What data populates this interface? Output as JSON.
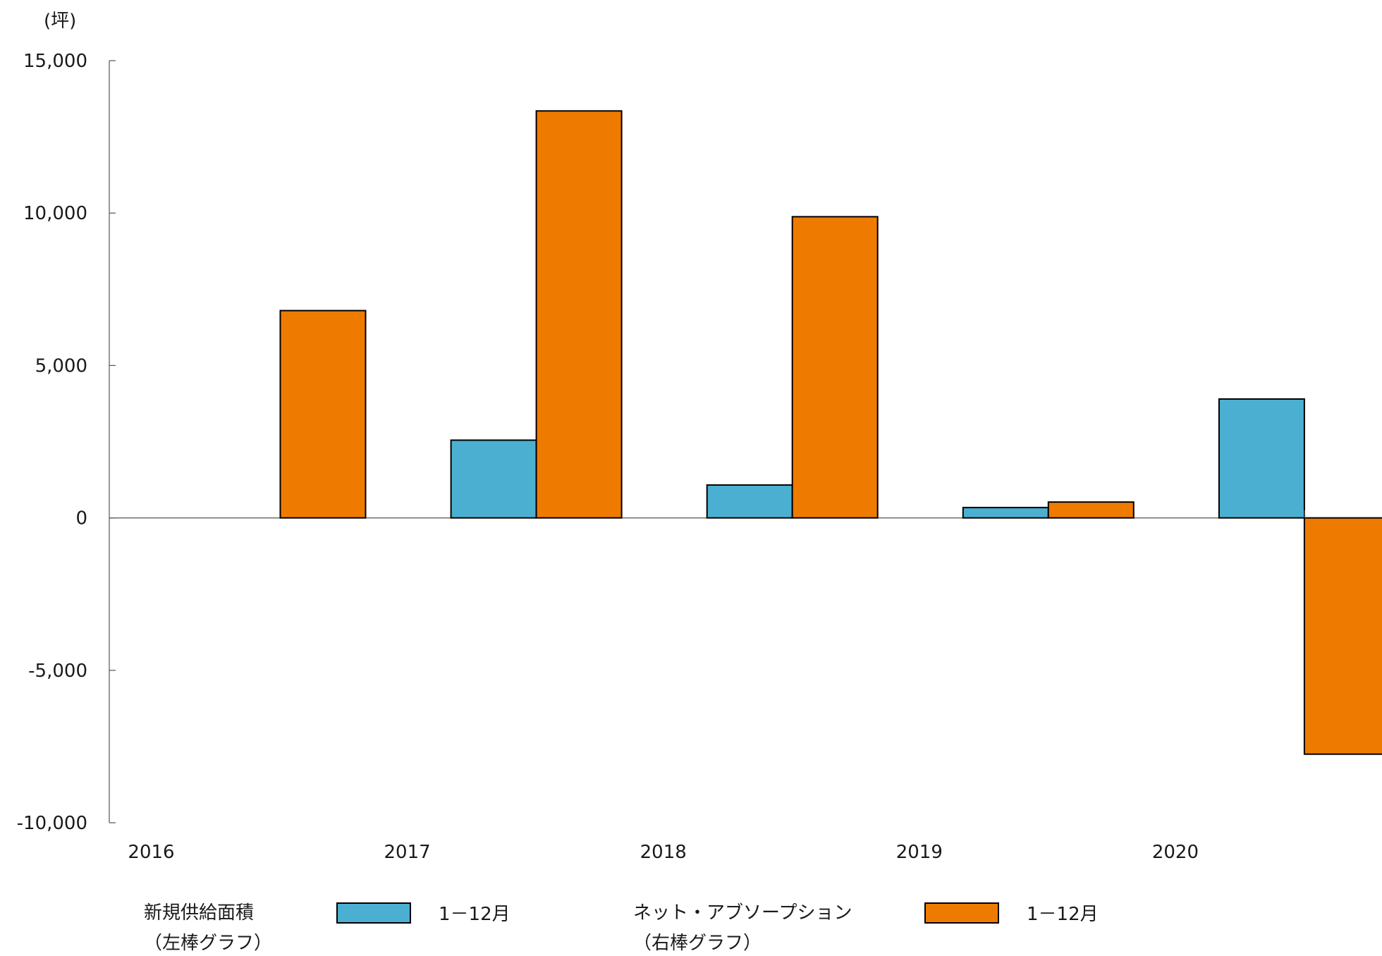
{
  "chart_data": {
    "type": "bar",
    "unit_label": "(坪)",
    "categories": [
      "2016",
      "2017",
      "2018",
      "2019",
      "2020"
    ],
    "ylim": [
      -10000,
      15000
    ],
    "y_ticks": [
      15000,
      10000,
      5000,
      0,
      -5000,
      -10000
    ],
    "y_tick_labels": [
      "15,000",
      "10,000",
      "5,000",
      "0",
      "-5,000",
      "-10,000"
    ],
    "grid": false,
    "legend_position": "bottom",
    "series": [
      {
        "name": "新規供給面積",
        "name_note": "（左棒グラフ）",
        "legend_label": "1－12月",
        "color": "#4bafd2",
        "values": [
          0,
          2550,
          1080,
          340,
          3900
        ]
      },
      {
        "name": "ネット・アブソープション",
        "name_note": "（右棒グラフ）",
        "legend_label": "1－12月",
        "color": "#ee7b00",
        "values": [
          6800,
          13350,
          9880,
          520,
          -7750
        ]
      }
    ]
  }
}
